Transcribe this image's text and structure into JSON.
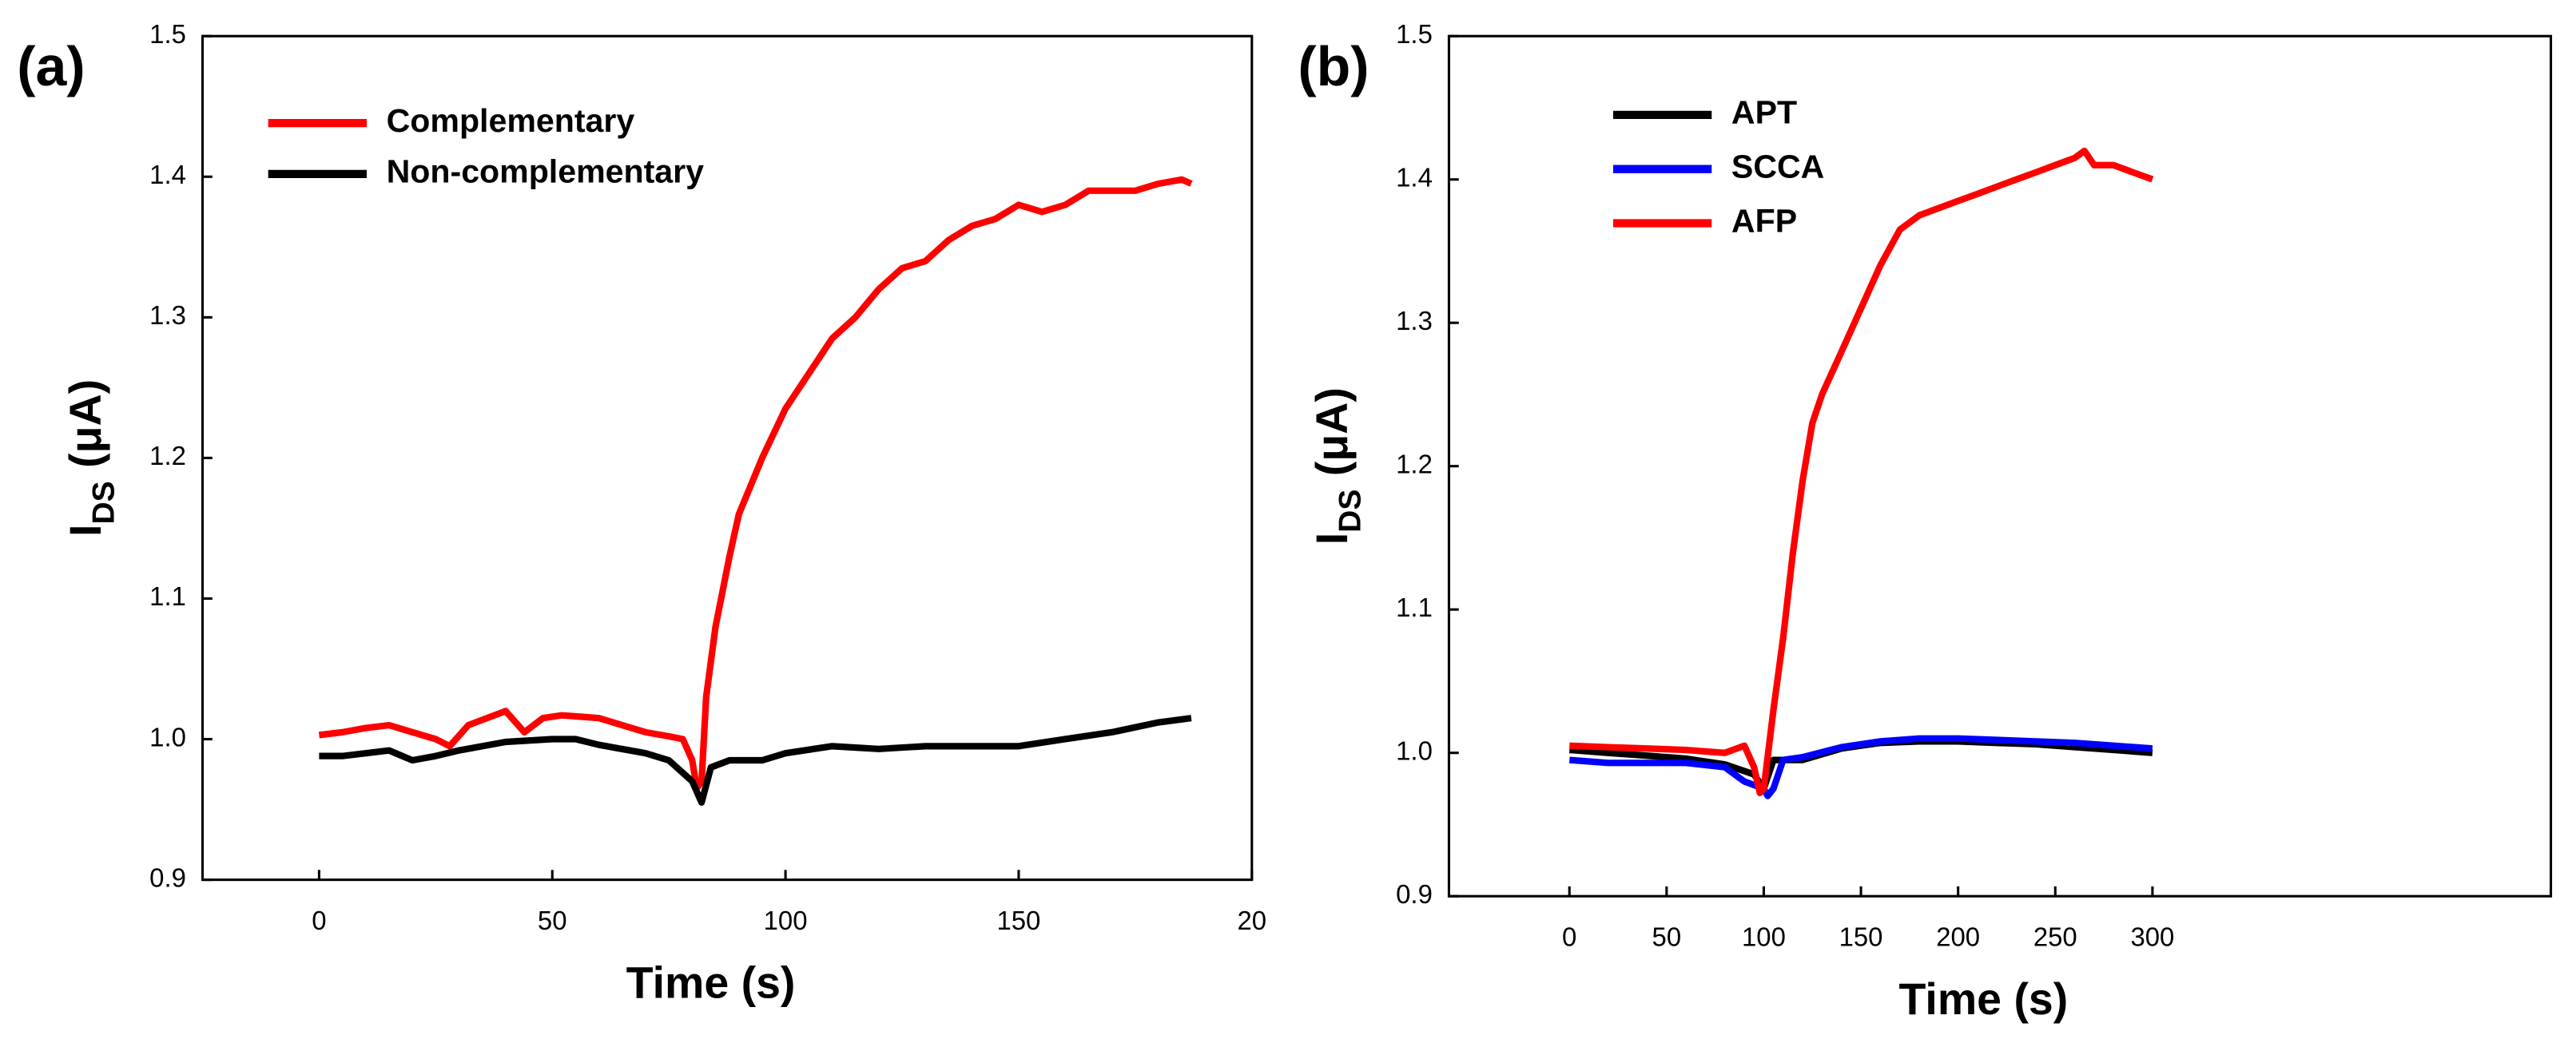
{
  "chart_data": [
    {
      "type": "line",
      "panel_label": "(a)",
      "xlabel": "Time (s)",
      "ylabel": "I",
      "ylabel_sub": "DS",
      "ylabel_unit": "(μA)",
      "xlim": [
        -25,
        200
      ],
      "xticks": [
        0,
        50,
        100,
        150,
        {
          "value": 200,
          "label": "20"
        }
      ],
      "ylim": [
        0.9,
        1.5
      ],
      "yticks": [
        0.9,
        {
          "value": 1.0,
          "label": "1.0"
        },
        1.1,
        1.2,
        1.3,
        1.4,
        {
          "value": 1.5,
          "label": "1.5"
        }
      ],
      "legend": "upper left",
      "series": [
        {
          "name": "Complementary",
          "color": "#ff0000",
          "x": [
            0,
            5,
            10,
            15,
            20,
            25,
            28,
            32,
            36,
            40,
            44,
            48,
            52,
            56,
            60,
            65,
            70,
            75,
            78,
            80,
            81,
            82,
            83,
            85,
            88,
            90,
            95,
            100,
            105,
            110,
            115,
            120,
            125,
            130,
            135,
            140,
            145,
            150,
            155,
            160,
            165,
            170,
            175,
            180,
            185,
            187
          ],
          "values": [
            1.003,
            1.005,
            1.008,
            1.01,
            1.005,
            1.0,
            0.995,
            1.01,
            1.015,
            1.02,
            1.005,
            1.015,
            1.017,
            1.016,
            1.015,
            1.01,
            1.005,
            1.002,
            1.0,
            0.985,
            0.965,
            0.97,
            1.03,
            1.08,
            1.13,
            1.16,
            1.2,
            1.235,
            1.26,
            1.285,
            1.3,
            1.32,
            1.335,
            1.34,
            1.355,
            1.365,
            1.37,
            1.38,
            1.375,
            1.38,
            1.39,
            1.39,
            1.39,
            1.395,
            1.398,
            1.395
          ]
        },
        {
          "name": "Non-complementary",
          "color": "#000000",
          "x": [
            0,
            5,
            10,
            15,
            20,
            25,
            30,
            40,
            50,
            55,
            60,
            70,
            75,
            80,
            82,
            84,
            88,
            95,
            100,
            110,
            120,
            130,
            140,
            150,
            160,
            170,
            180,
            187
          ],
          "values": [
            0.988,
            0.988,
            0.99,
            0.992,
            0.985,
            0.988,
            0.992,
            0.998,
            1.0,
            1.0,
            0.996,
            0.99,
            0.985,
            0.97,
            0.955,
            0.98,
            0.985,
            0.985,
            0.99,
            0.995,
            0.993,
            0.995,
            0.995,
            0.995,
            1.0,
            1.005,
            1.012,
            1.015
          ]
        }
      ]
    },
    {
      "type": "line",
      "panel_label": "(b)",
      "xlabel": "Time (s)",
      "ylabel": "I",
      "ylabel_sub": "DS",
      "ylabel_unit": "(μA)",
      "xlim": [
        -62,
        505
      ],
      "xticks": [
        0,
        50,
        100,
        150,
        200,
        250,
        300
      ],
      "ylim": [
        0.9,
        1.5
      ],
      "yticks": [
        0.9,
        {
          "value": 1.0,
          "label": "1.0"
        },
        1.1,
        1.2,
        1.3,
        1.4,
        {
          "value": 1.5,
          "label": "1.5"
        }
      ],
      "legend": "upper left",
      "series": [
        {
          "name": "APT",
          "color": "#000000",
          "x": [
            0,
            20,
            40,
            60,
            80,
            95,
            100,
            105,
            120,
            140,
            160,
            180,
            200,
            220,
            240,
            260,
            280,
            300
          ],
          "values": [
            1.002,
            1.0,
            0.998,
            0.996,
            0.992,
            0.985,
            0.975,
            0.995,
            0.995,
            1.003,
            1.007,
            1.008,
            1.008,
            1.007,
            1.006,
            1.004,
            1.002,
            1.0
          ]
        },
        {
          "name": "SCCA",
          "color": "#0000ff",
          "x": [
            0,
            20,
            40,
            60,
            80,
            90,
            100,
            102,
            105,
            110,
            120,
            140,
            160,
            180,
            200,
            220,
            240,
            260,
            280,
            300
          ],
          "values": [
            0.995,
            0.993,
            0.993,
            0.993,
            0.99,
            0.98,
            0.975,
            0.97,
            0.975,
            0.995,
            0.997,
            1.004,
            1.008,
            1.01,
            1.01,
            1.009,
            1.008,
            1.007,
            1.005,
            1.003
          ]
        },
        {
          "name": "AFP",
          "color": "#ff0000",
          "x": [
            0,
            20,
            40,
            60,
            80,
            90,
            95,
            98,
            100,
            105,
            110,
            115,
            120,
            125,
            130,
            140,
            150,
            160,
            170,
            180,
            190,
            200,
            210,
            220,
            230,
            240,
            250,
            260,
            265,
            270,
            280,
            290,
            300
          ],
          "values": [
            1.005,
            1.004,
            1.003,
            1.002,
            1.0,
            1.005,
            0.99,
            0.972,
            0.975,
            1.03,
            1.08,
            1.14,
            1.19,
            1.23,
            1.25,
            1.28,
            1.31,
            1.34,
            1.365,
            1.375,
            1.38,
            1.385,
            1.39,
            1.395,
            1.4,
            1.405,
            1.41,
            1.415,
            1.42,
            1.41,
            1.41,
            1.405,
            1.4
          ]
        }
      ]
    }
  ]
}
